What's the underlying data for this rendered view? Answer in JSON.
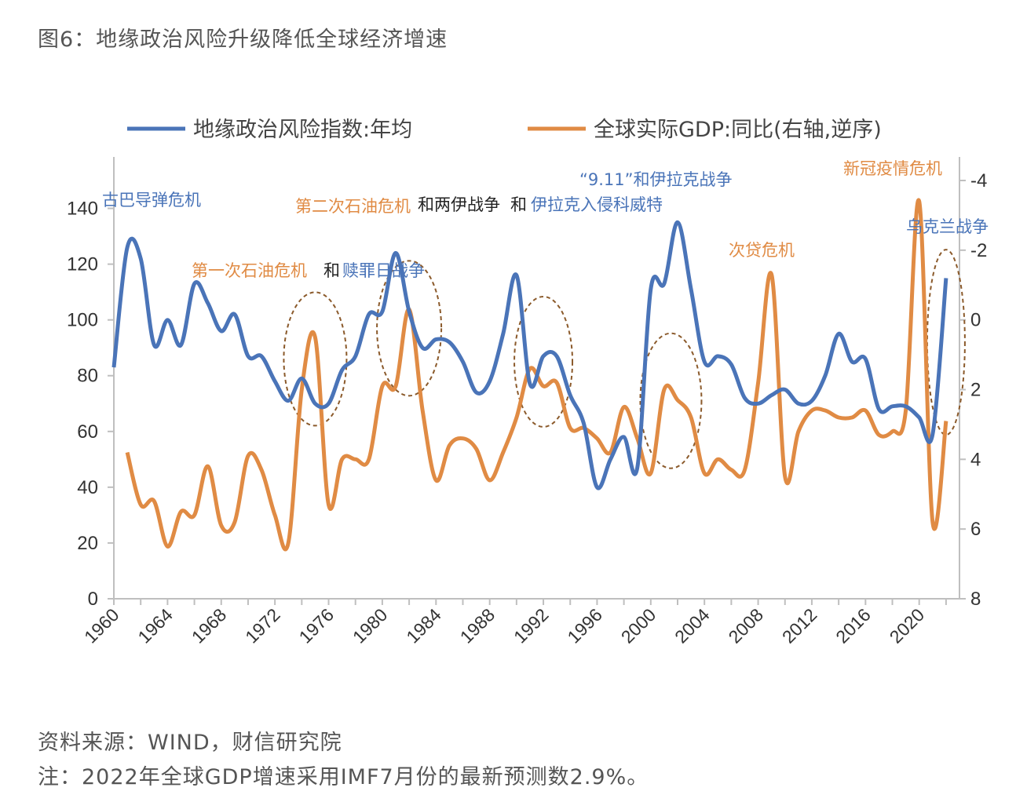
{
  "figure": {
    "title": "图6：地缘政治风险升级降低全球经济增速",
    "source": "资料来源：WIND，财信研究院",
    "note": "注：2022年全球GDP增速采用IMF7月份的最新预测数2.9%。"
  },
  "colors": {
    "gpr": "#4a74b8",
    "gdp": "#e08b44",
    "axis": "#bfbfbf",
    "ellipse": "#8b5a2b"
  },
  "chart_data": {
    "type": "line",
    "x_ticks": [
      "1960",
      "1964",
      "1968",
      "1972",
      "1976",
      "1980",
      "1984",
      "1988",
      "1992",
      "1996",
      "2000",
      "2004",
      "2008",
      "2012",
      "2016",
      "2020"
    ],
    "y_left": {
      "lim": [
        0,
        150
      ],
      "ticks": [
        "0",
        "20",
        "40",
        "60",
        "80",
        "100",
        "120",
        "140"
      ]
    },
    "y_right": {
      "lim": [
        -4,
        8
      ],
      "inverted": true,
      "ticks": [
        "-4",
        "-2",
        "0",
        "2",
        "4",
        "6",
        "8"
      ]
    },
    "legend_position": "top",
    "series": [
      {
        "name": "地缘政治风险指数:年均",
        "axis": "left",
        "x": [
          1960,
          1961,
          1962,
          1963,
          1964,
          1965,
          1966,
          1967,
          1968,
          1969,
          1970,
          1971,
          1972,
          1973,
          1974,
          1975,
          1976,
          1977,
          1978,
          1979,
          1980,
          1981,
          1982,
          1983,
          1984,
          1985,
          1986,
          1987,
          1988,
          1989,
          1990,
          1991,
          1992,
          1993,
          1994,
          1995,
          1996,
          1997,
          1998,
          1999,
          2000,
          2001,
          2002,
          2003,
          2004,
          2005,
          2006,
          2007,
          2008,
          2009,
          2010,
          2011,
          2012,
          2013,
          2014,
          2015,
          2016,
          2017,
          2018,
          2019,
          2020,
          2021,
          2022
        ],
        "values": [
          83,
          126,
          122,
          91,
          100,
          91,
          113,
          106,
          96,
          102,
          87,
          87,
          78,
          71,
          79,
          70,
          70,
          82,
          87,
          102,
          103,
          124,
          103,
          90,
          93,
          92,
          85,
          74,
          78,
          95,
          116,
          77,
          87,
          87,
          73,
          63,
          40,
          50,
          58,
          47,
          111,
          113,
          135,
          111,
          85,
          87,
          84,
          72,
          70,
          73,
          75,
          70,
          71,
          80,
          95,
          85,
          86,
          68,
          69,
          69,
          65,
          59,
          115
        ]
      },
      {
        "name": "全球实际GDP:同比(右轴,逆序)",
        "axis": "right",
        "x": [
          1961,
          1962,
          1963,
          1964,
          1965,
          1966,
          1967,
          1968,
          1969,
          1970,
          1971,
          1972,
          1973,
          1974,
          1975,
          1976,
          1977,
          1978,
          1979,
          1980,
          1981,
          1982,
          1983,
          1984,
          1985,
          1986,
          1987,
          1988,
          1989,
          1990,
          1991,
          1992,
          1993,
          1994,
          1995,
          1996,
          1997,
          1998,
          1999,
          2000,
          2001,
          2002,
          2003,
          2004,
          2005,
          2006,
          2007,
          2008,
          2009,
          2010,
          2011,
          2012,
          2013,
          2014,
          2015,
          2016,
          2017,
          2018,
          2019,
          2020,
          2021,
          2022
        ],
        "values": [
          3.8,
          5.3,
          5.2,
          6.5,
          5.5,
          5.6,
          4.2,
          5.9,
          5.8,
          3.9,
          4.3,
          5.6,
          6.4,
          2.0,
          0.5,
          5.3,
          4.0,
          4.0,
          4.0,
          1.9,
          1.9,
          -0.3,
          2.6,
          4.6,
          3.6,
          3.4,
          3.7,
          4.6,
          3.8,
          2.8,
          1.4,
          1.9,
          1.8,
          3.1,
          3.1,
          3.4,
          3.8,
          2.5,
          3.4,
          4.4,
          2.0,
          2.3,
          2.8,
          4.4,
          4.0,
          4.3,
          4.3,
          1.8,
          -1.3,
          4.5,
          3.2,
          2.6,
          2.6,
          2.8,
          2.8,
          2.6,
          3.3,
          3.2,
          2.6,
          -3.4,
          5.8,
          2.9
        ]
      }
    ],
    "annotations": [
      {
        "text": "古巴导弹危机",
        "color": "#4a74b8"
      },
      {
        "text": "第一次石油危机",
        "color": "#e08b44"
      },
      {
        "text": "和",
        "color": "#222222"
      },
      {
        "text": "赎罪日战争",
        "color": "#4a74b8"
      },
      {
        "text": "第二次石油危机",
        "color": "#e08b44"
      },
      {
        "text": "和两伊战争",
        "color": "#222222"
      },
      {
        "text": "和",
        "color": "#222222"
      },
      {
        "text": "伊拉克入侵科威特",
        "color": "#4a74b8"
      },
      {
        "text": "“9.11”和伊拉克战争",
        "color": "#4a74b8"
      },
      {
        "text": "次贷危机",
        "color": "#e08b44"
      },
      {
        "text": "新冠疫情危机",
        "color": "#e08b44"
      },
      {
        "text": "乌克兰战争",
        "color": "#4a74b8"
      }
    ]
  }
}
